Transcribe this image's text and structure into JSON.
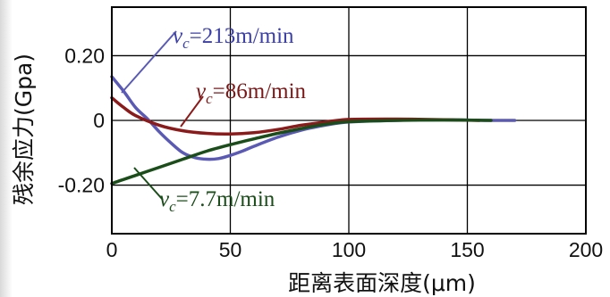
{
  "chart_data": {
    "type": "line",
    "title": "",
    "xlabel": "距离表面深度(μm)",
    "ylabel": "残余应力(Gpa)",
    "xlim": [
      0,
      200
    ],
    "ylim": [
      -0.35,
      0.35
    ],
    "grid": true,
    "x_ticks": [
      {
        "value": 0,
        "label": "0"
      },
      {
        "value": 50,
        "label": "50"
      },
      {
        "value": 100,
        "label": "100"
      },
      {
        "value": 150,
        "label": "150"
      },
      {
        "value": 200,
        "label": "200"
      }
    ],
    "y_ticks": [
      {
        "value": 0.2,
        "label": "0.20"
      },
      {
        "value": 0,
        "label": "0"
      },
      {
        "value": -0.2,
        "label": "-0.20"
      }
    ],
    "annotations": [
      {
        "id": "a1",
        "var": "v",
        "sub": "c",
        "text": "=213m/min",
        "color": "#3b3fa6",
        "series": "s213"
      },
      {
        "id": "a2",
        "var": "v",
        "sub": "c",
        "text": "=86m/min",
        "color": "#7a1818",
        "series": "s86"
      },
      {
        "id": "a3",
        "var": "v",
        "sub": "c",
        "text": "=7.7m/min",
        "color": "#1a4d1a",
        "series": "s7"
      }
    ],
    "series": [
      {
        "id": "s213",
        "color": "#5a5ab4",
        "x": [
          0,
          5,
          10,
          15,
          20,
          25,
          30,
          35,
          40,
          45,
          50,
          55,
          60,
          70,
          80,
          90,
          100,
          120,
          140,
          160,
          170
        ],
        "y": [
          0.135,
          0.09,
          0.04,
          0.005,
          -0.035,
          -0.07,
          -0.1,
          -0.115,
          -0.12,
          -0.118,
          -0.108,
          -0.095,
          -0.08,
          -0.052,
          -0.03,
          -0.015,
          -0.005,
          0,
          0.002,
          0.0,
          0.0
        ]
      },
      {
        "id": "s86",
        "color": "#8b1a1a",
        "x": [
          0,
          5,
          10,
          20,
          30,
          40,
          50,
          60,
          70,
          80,
          90,
          100,
          120,
          140,
          155
        ],
        "y": [
          0.07,
          0.04,
          0.015,
          -0.015,
          -0.032,
          -0.04,
          -0.042,
          -0.038,
          -0.028,
          -0.015,
          -0.005,
          0.003,
          0.004,
          0.002,
          0.0
        ]
      },
      {
        "id": "s7",
        "color": "#1a4d1a",
        "x": [
          0,
          10,
          20,
          30,
          40,
          50,
          60,
          70,
          80,
          90,
          100,
          120,
          140,
          160
        ],
        "y": [
          -0.195,
          -0.17,
          -0.145,
          -0.12,
          -0.095,
          -0.075,
          -0.057,
          -0.04,
          -0.025,
          -0.012,
          -0.004,
          0,
          0.001,
          0.0
        ]
      }
    ]
  }
}
